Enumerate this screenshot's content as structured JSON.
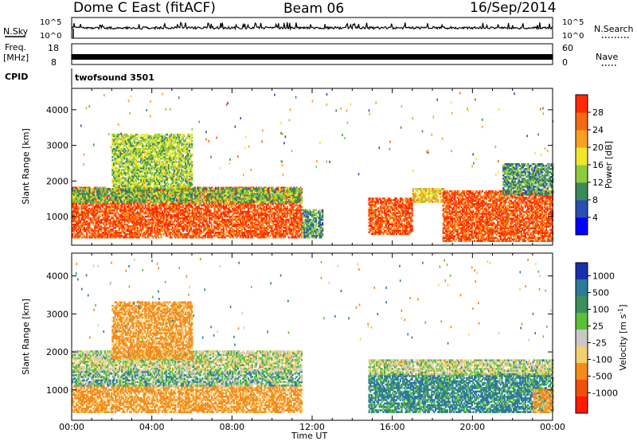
{
  "header": {
    "station": "Dome C East (fitACF)",
    "beam": "Beam 06",
    "date": "16/Sep/2014"
  },
  "nsky_panel": {
    "left_label": "N.Sky",
    "right_label": "N.Search",
    "left_ticks": [
      "10^5",
      "10^0"
    ],
    "right_ticks": [
      "10^5",
      "10^0"
    ]
  },
  "freq_panel": {
    "left_label_line1": "Freq.",
    "left_label_line2": "[MHz]",
    "right_label": "Nave",
    "left_ticks": [
      "18",
      "8"
    ],
    "right_ticks": [
      "60",
      "0"
    ]
  },
  "cpid": {
    "label": "CPID",
    "value": "twofsound 3501"
  },
  "x_axis": {
    "title": "Time UT",
    "ticks": [
      "00:00",
      "04:00",
      "08:00",
      "12:00",
      "16:00",
      "20:00",
      "00:00"
    ]
  },
  "power_colorbar": {
    "title": "Power [dB]",
    "ticks": [
      "28",
      "24",
      "20",
      "16",
      "12",
      "8",
      "4"
    ],
    "colors": [
      "#0000ff",
      "#2b4fb0",
      "#3a8a5a",
      "#8ecb3c",
      "#f0e62a",
      "#f9a020",
      "#f46a12",
      "#ff2a00"
    ]
  },
  "velocity_colorbar": {
    "title": "Velocity [m s^-1]",
    "ticks": [
      "1000",
      "500",
      "100",
      "25",
      "-25",
      "-100",
      "-500",
      "-1000"
    ],
    "colors": [
      "#1a2fb0",
      "#2d7a9a",
      "#3c8e5a",
      "#5bbf3a",
      "#c8c8c8",
      "#f2d070",
      "#f48c1c",
      "#f0500a",
      "#ff1a00"
    ]
  },
  "chart_data": [
    {
      "type": "heatmap",
      "parameter": "Power",
      "ylabel": "Slant Range [km]",
      "xlabel": "Time UT",
      "y_ticks": [
        1000,
        2000,
        3000,
        4000
      ],
      "ylim": [
        200,
        4600
      ],
      "xlim_hours": [
        0,
        24
      ],
      "color_range_dB": [
        0,
        30
      ],
      "scatter_regions": [
        {
          "t_start": 0.0,
          "t_end": 11.5,
          "r_low": 400,
          "r_high": 1800,
          "value": 26
        },
        {
          "t_start": 0.0,
          "t_end": 11.5,
          "r_low": 1400,
          "r_high": 1800,
          "value": 12
        },
        {
          "t_start": 2.0,
          "t_end": 6.0,
          "r_low": 1800,
          "r_high": 3300,
          "value": 14
        },
        {
          "t_start": 11.5,
          "t_end": 12.5,
          "r_low": 400,
          "r_high": 1200,
          "value": 10
        },
        {
          "t_start": 14.8,
          "t_end": 17.0,
          "r_low": 500,
          "r_high": 1500,
          "value": 26
        },
        {
          "t_start": 17.0,
          "t_end": 18.5,
          "r_low": 1400,
          "r_high": 1800,
          "value": 18
        },
        {
          "t_start": 18.5,
          "t_end": 24.0,
          "r_low": 300,
          "r_high": 1700,
          "value": 26
        },
        {
          "t_start": 21.5,
          "t_end": 24.0,
          "r_low": 1600,
          "r_high": 2500,
          "value": 10
        }
      ]
    },
    {
      "type": "heatmap",
      "parameter": "Velocity",
      "ylabel": "Slant Range [km]",
      "xlabel": "Time UT",
      "y_ticks": [
        1000,
        2000,
        3000,
        4000
      ],
      "ylim": [
        200,
        4600
      ],
      "xlim_hours": [
        0,
        24
      ],
      "color_range_ms": [
        -1000,
        1000
      ],
      "scatter_regions": [
        {
          "t_start": 0.0,
          "t_end": 11.5,
          "r_low": 400,
          "r_high": 1100,
          "value": -150
        },
        {
          "t_start": 0.0,
          "t_end": 11.5,
          "r_low": 1100,
          "r_high": 1500,
          "value": 60
        },
        {
          "t_start": 0.0,
          "t_end": 11.5,
          "r_low": 1500,
          "r_high": 2000,
          "value": 0
        },
        {
          "t_start": 2.0,
          "t_end": 6.0,
          "r_low": 1800,
          "r_high": 3300,
          "value": -150
        },
        {
          "t_start": 14.8,
          "t_end": 24.0,
          "r_low": 400,
          "r_high": 1400,
          "value": 150
        },
        {
          "t_start": 14.8,
          "t_end": 24.0,
          "r_low": 1400,
          "r_high": 1800,
          "value": 0
        },
        {
          "t_start": 23.0,
          "t_end": 24.0,
          "r_low": 400,
          "r_high": 1000,
          "value": -150
        }
      ]
    }
  ]
}
